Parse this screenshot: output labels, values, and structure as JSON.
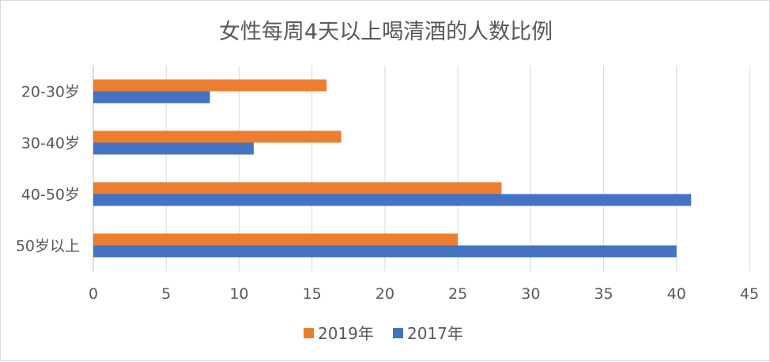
{
  "chart_data": {
    "type": "bar",
    "orientation": "horizontal",
    "title": "女性每周4天以上喝清酒的人数比例",
    "categories": [
      "20-30岁",
      "30-40岁",
      "40-50岁",
      "50岁以上"
    ],
    "series": [
      {
        "name": "2019年",
        "color": "#ED7D31",
        "values": [
          16,
          17,
          28,
          25
        ]
      },
      {
        "name": "2017年",
        "color": "#4472C4",
        "values": [
          8,
          11,
          41,
          40
        ]
      }
    ],
    "xlim": [
      0,
      45
    ],
    "xticks": [
      "0",
      "5",
      "10",
      "15",
      "20",
      "25",
      "30",
      "35",
      "40",
      "45"
    ],
    "grid": true,
    "legend": "bottom"
  }
}
